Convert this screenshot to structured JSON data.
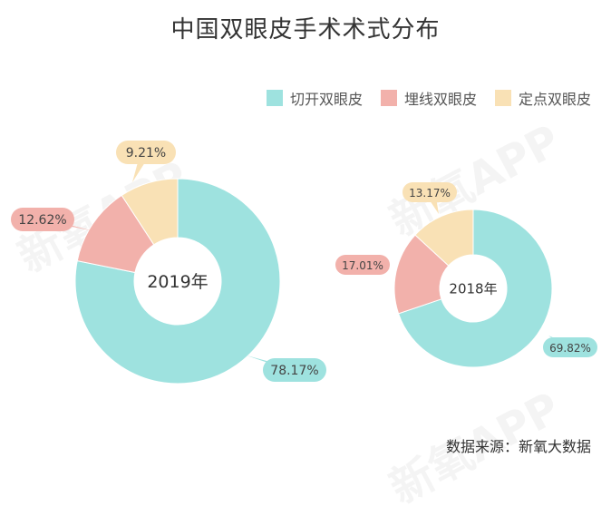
{
  "title": "中国双眼皮手术术式分布",
  "source": "数据来源：新氧大数据",
  "watermark": "新氧APP",
  "colors": {
    "切开双眼皮": "#9ee2df",
    "埋线双眼皮": "#f2b1ab",
    "定点双眼皮": "#f9e1b5"
  },
  "chart_data": {
    "type": "donut",
    "title": "中国双眼皮手术术式分布",
    "legend": [
      "切开双眼皮",
      "埋线双眼皮",
      "定点双眼皮"
    ],
    "legend_position": "top-right",
    "charts": [
      {
        "center_label": "2019年",
        "slices": [
          {
            "name": "切开双眼皮",
            "value": 78.17,
            "label": "78.17%"
          },
          {
            "name": "埋线双眼皮",
            "value": 12.62,
            "label": "12.62%"
          },
          {
            "name": "定点双眼皮",
            "value": 9.21,
            "label": "9.21%"
          }
        ]
      },
      {
        "center_label": "2018年",
        "slices": [
          {
            "name": "切开双眼皮",
            "value": 69.82,
            "label": "69.82%"
          },
          {
            "name": "埋线双眼皮",
            "value": 17.01,
            "label": "17.01%"
          },
          {
            "name": "定点双眼皮",
            "value": 13.17,
            "label": "13.17%"
          }
        ]
      }
    ]
  }
}
